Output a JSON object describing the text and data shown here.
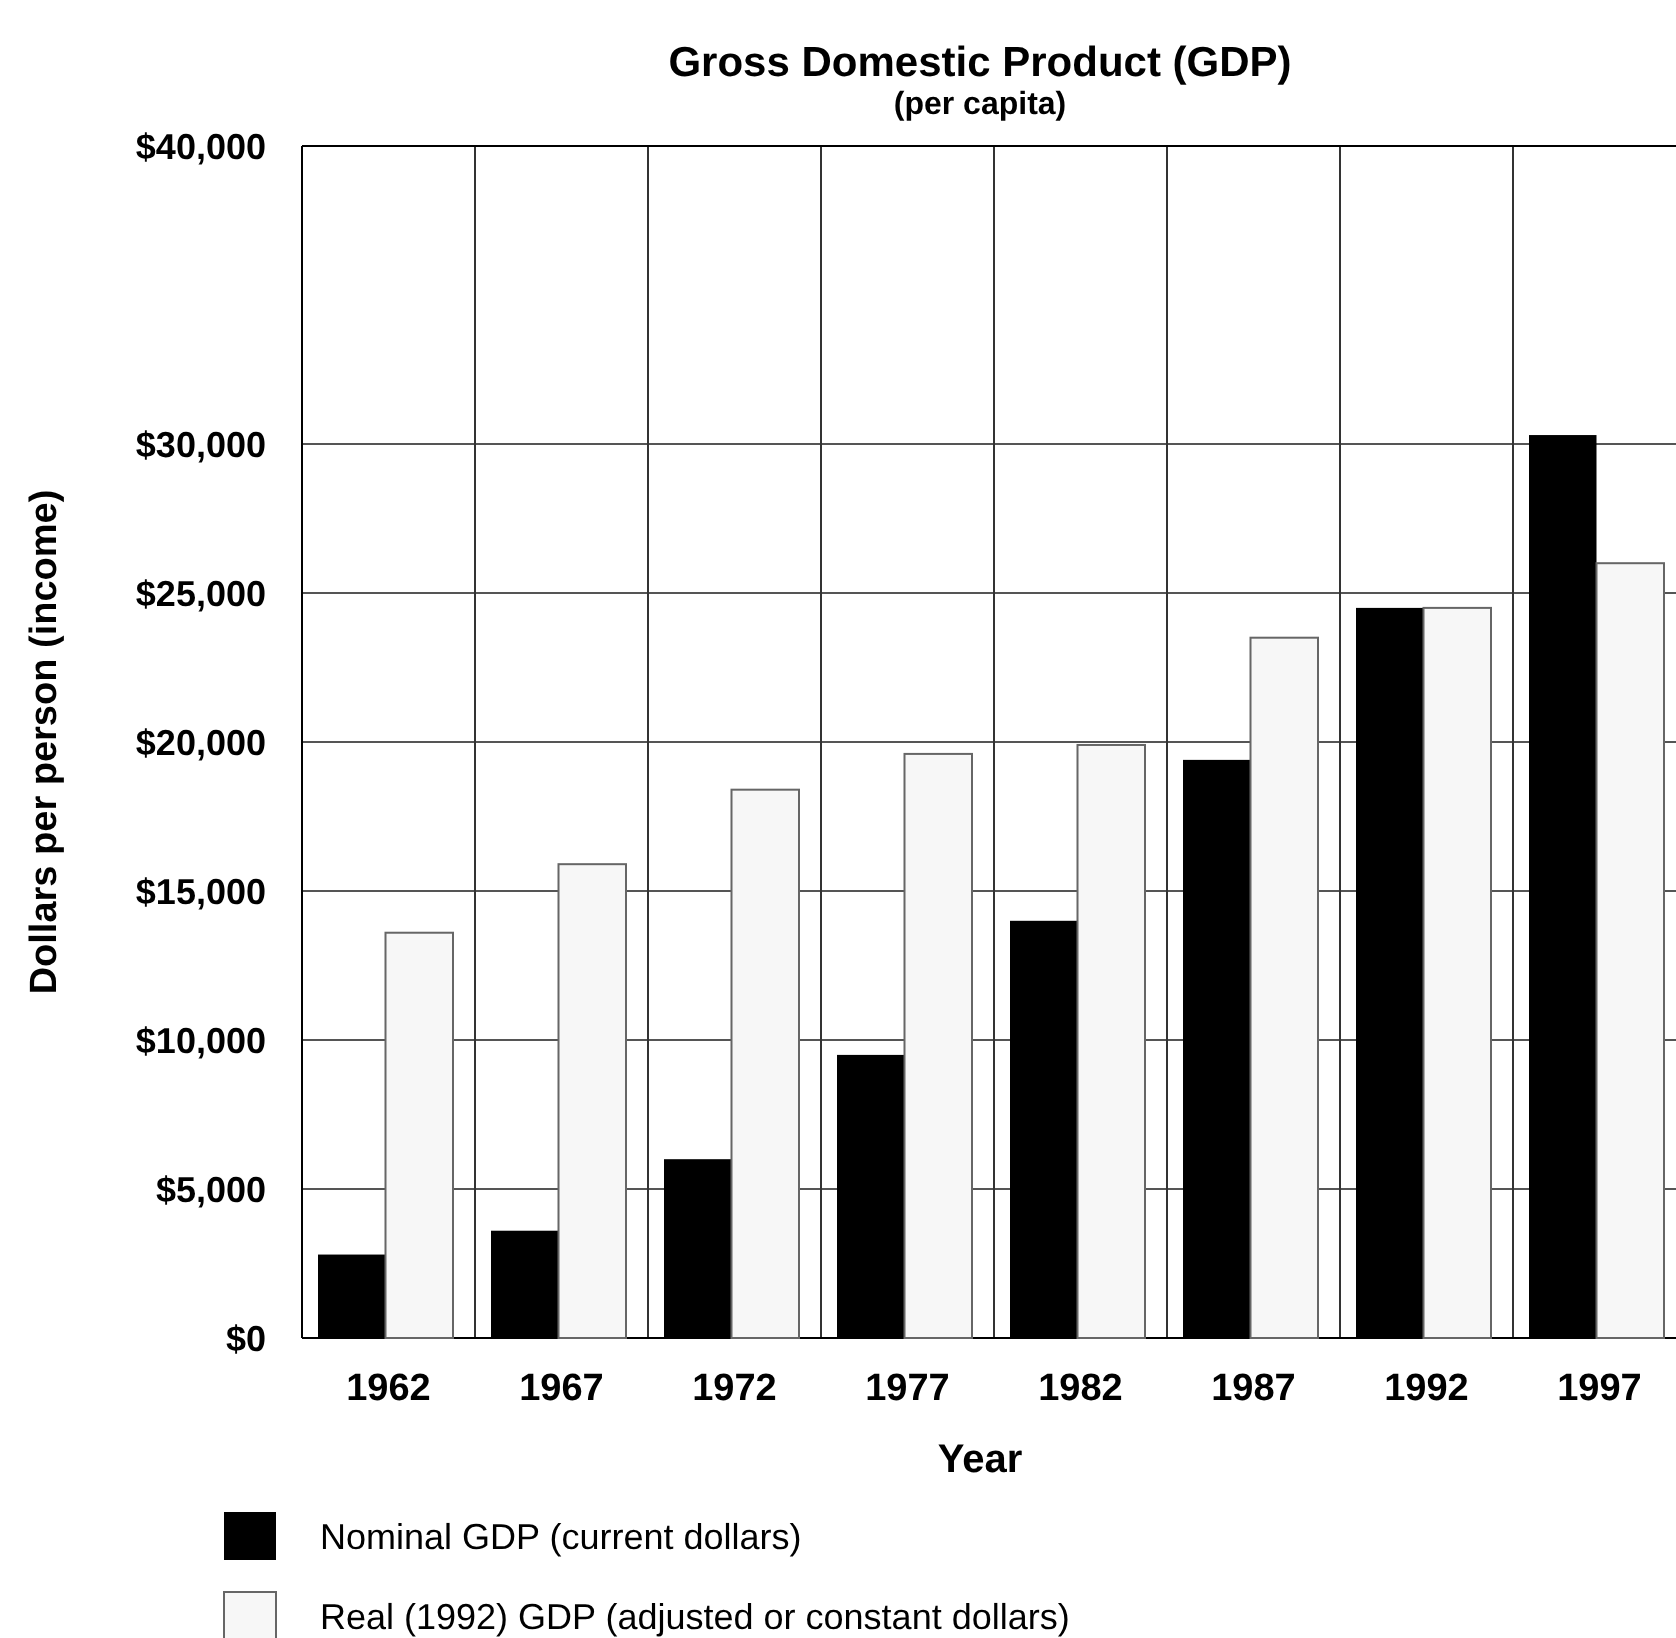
{
  "chart_data": {
    "type": "bar",
    "title": "Gross Domestic Product (GDP)",
    "subtitle": "(per capita)",
    "xlabel": "Year",
    "ylabel": "Dollars per person (income)",
    "categories": [
      "1962",
      "1967",
      "1972",
      "1977",
      "1982",
      "1987",
      "1992",
      "1997"
    ],
    "series": [
      {
        "name": "Nominal GDP (current dollars)",
        "color": "#000000",
        "values": [
          2800,
          3600,
          6000,
          9500,
          14000,
          19400,
          24500,
          30300
        ]
      },
      {
        "name": "Real (1992) GDP (adjusted or constant dollars)",
        "color": "#f7f7f7",
        "values": [
          13600,
          15900,
          18400,
          19600,
          19900,
          23500,
          24500,
          26000
        ]
      }
    ],
    "ylim": [
      0,
      40000
    ],
    "yticks": [
      {
        "value": 0,
        "label": "$0"
      },
      {
        "value": 5000,
        "label": "$5,000"
      },
      {
        "value": 10000,
        "label": "$10,000"
      },
      {
        "value": 15000,
        "label": "$15,000"
      },
      {
        "value": 20000,
        "label": "$20,000"
      },
      {
        "value": 25000,
        "label": "$25,000"
      },
      {
        "value": 30000,
        "label": "$30,000"
      },
      {
        "value": 40000,
        "label": "$40,000"
      }
    ],
    "grid": true,
    "legend": "bottom left"
  }
}
